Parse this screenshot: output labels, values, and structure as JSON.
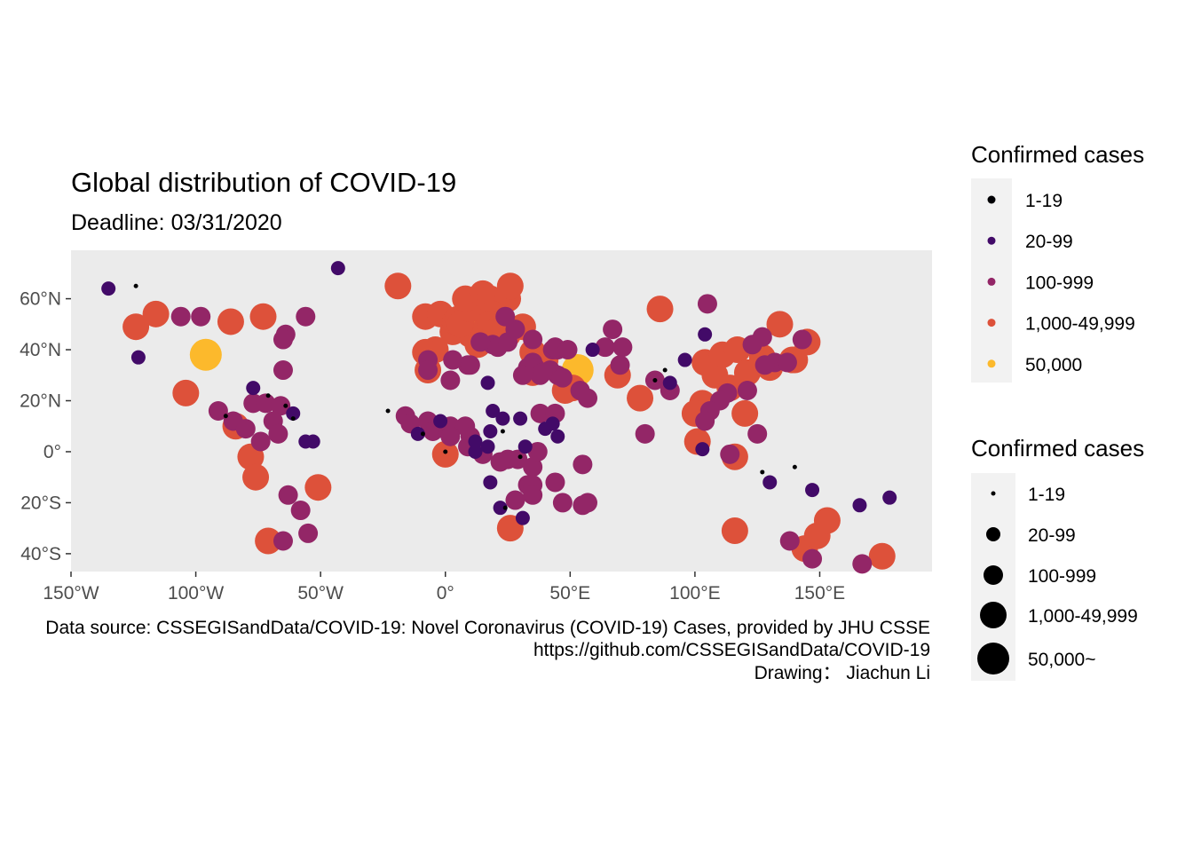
{
  "chart_data": {
    "type": "scatter",
    "title": "Global distribution of COVID-19",
    "subtitle": "Deadline: 03/31/2020",
    "caption": [
      "Data source: CSSEGISandData/COVID-19: Novel Coronavirus (COVID-19) Cases, provided by JHU CSSE",
      "https://github.com/CSSEGISandData/COVID-19",
      "Drawing： Jiachun Li"
    ],
    "xlim": [
      -150,
      195
    ],
    "ylim": [
      -47,
      79
    ],
    "x_ticks": [
      -150,
      -100,
      -50,
      0,
      50,
      100,
      150
    ],
    "x_tick_labels": [
      "150°W",
      "100°W",
      "50°W",
      "0°",
      "50°E",
      "100°E",
      "150°E"
    ],
    "y_ticks": [
      60,
      40,
      20,
      0,
      -20,
      -40
    ],
    "y_tick_labels": [
      "60°N",
      "40°N",
      "20°N",
      "0°",
      "20°S",
      "40°S"
    ],
    "grid": false,
    "panel_background": "#ebebeb",
    "legend_position": "right",
    "color_legend": {
      "title": "Confirmed cases",
      "items": [
        {
          "label": "1-19",
          "color": "#000004"
        },
        {
          "label": "20-99",
          "color": "#420a68"
        },
        {
          "label": "100-999",
          "color": "#932667"
        },
        {
          "label": "1,000-49,999",
          "color": "#dd513a"
        },
        {
          "label": "50,000",
          "color": "#fcb92c"
        }
      ]
    },
    "size_legend": {
      "title": "Confirmed cases",
      "items": [
        {
          "label": "1-19",
          "level": 1
        },
        {
          "label": "20-99",
          "level": 2
        },
        {
          "label": "100-999",
          "level": 3
        },
        {
          "label": "1,000-49,999",
          "level": 4
        },
        {
          "label": "50,000~",
          "level": 5
        }
      ]
    },
    "points": [
      [
        -135,
        64,
        2
      ],
      [
        -124,
        65,
        1
      ],
      [
        -123,
        37,
        2
      ],
      [
        -124,
        49,
        4
      ],
      [
        -116,
        54,
        4
      ],
      [
        -106,
        53,
        3
      ],
      [
        -98,
        53,
        3
      ],
      [
        -96,
        38,
        5
      ],
      [
        -86,
        51,
        4
      ],
      [
        -73,
        53,
        4
      ],
      [
        -64,
        46,
        3
      ],
      [
        -65,
        44,
        3
      ],
      [
        -56,
        53,
        3
      ],
      [
        -65,
        32,
        3
      ],
      [
        -104,
        23,
        4
      ],
      [
        -91,
        16,
        3
      ],
      [
        -88,
        14,
        1
      ],
      [
        -85,
        12,
        3
      ],
      [
        -84,
        10,
        4
      ],
      [
        -80,
        9,
        3
      ],
      [
        -77,
        19,
        3
      ],
      [
        -77,
        25,
        2
      ],
      [
        -72,
        19,
        3
      ],
      [
        -71,
        22,
        1
      ],
      [
        -66,
        18,
        3
      ],
      [
        -64,
        18,
        1
      ],
      [
        -61,
        15,
        2
      ],
      [
        -61,
        13,
        1
      ],
      [
        -69,
        12,
        3
      ],
      [
        -78,
        -2,
        4
      ],
      [
        -74,
        4,
        3
      ],
      [
        -76,
        -10,
        4
      ],
      [
        -67,
        7,
        3
      ],
      [
        -63,
        -17,
        3
      ],
      [
        -58,
        -23,
        3
      ],
      [
        -56,
        4,
        2
      ],
      [
        -53,
        4,
        2
      ],
      [
        -55,
        -32,
        3
      ],
      [
        -65,
        -35,
        3
      ],
      [
        -71,
        -35,
        4
      ],
      [
        -51,
        -14,
        4
      ],
      [
        -43,
        72,
        2
      ],
      [
        -19,
        65,
        4
      ],
      [
        -8,
        53,
        4
      ],
      [
        -2,
        54,
        4
      ],
      [
        3,
        47,
        4
      ],
      [
        -4,
        40,
        4
      ],
      [
        -8,
        39,
        4
      ],
      [
        -7,
        36,
        3
      ],
      [
        -7,
        32,
        3
      ],
      [
        -23,
        16,
        1
      ],
      [
        -16,
        14,
        3
      ],
      [
        -14,
        11,
        3
      ],
      [
        -11,
        7,
        2
      ],
      [
        -9,
        7,
        1
      ],
      [
        -7,
        12,
        3
      ],
      [
        -5,
        8,
        3
      ],
      [
        -2,
        12,
        2
      ],
      [
        1,
        8,
        3
      ],
      [
        2,
        10,
        3
      ],
      [
        8,
        10,
        3
      ],
      [
        10,
        6,
        3
      ],
      [
        12,
        4,
        2
      ],
      [
        2,
        6,
        3
      ],
      [
        9,
        2,
        3
      ],
      [
        12,
        0,
        2
      ],
      [
        0,
        0,
        1
      ],
      [
        0,
        -1,
        4
      ],
      [
        15,
        -1,
        3
      ],
      [
        17,
        2,
        2
      ],
      [
        18,
        8,
        2
      ],
      [
        19,
        16,
        2
      ],
      [
        23,
        13,
        2
      ],
      [
        23,
        8,
        1
      ],
      [
        30,
        13,
        2
      ],
      [
        32,
        2,
        2
      ],
      [
        30,
        -2,
        1
      ],
      [
        29,
        -3,
        3
      ],
      [
        25,
        -3,
        3
      ],
      [
        35,
        -6,
        3
      ],
      [
        37,
        0,
        3
      ],
      [
        40,
        9,
        2
      ],
      [
        38,
        15,
        3
      ],
      [
        43,
        11,
        2
      ],
      [
        45,
        6,
        2
      ],
      [
        18,
        -12,
        2
      ],
      [
        22,
        -4,
        3
      ],
      [
        22,
        -22,
        2
      ],
      [
        24,
        -22,
        1
      ],
      [
        26,
        -30,
        4
      ],
      [
        28,
        -19,
        3
      ],
      [
        31,
        -26,
        2
      ],
      [
        33,
        -13,
        3
      ],
      [
        35,
        -13,
        3
      ],
      [
        35,
        -17,
        3
      ],
      [
        47,
        -20,
        3
      ],
      [
        55,
        -21,
        3
      ],
      [
        57,
        -20,
        3
      ],
      [
        44,
        -12,
        3
      ],
      [
        55,
        -5,
        3
      ],
      [
        9,
        34,
        3
      ],
      [
        2,
        28,
        3
      ],
      [
        -7,
        32,
        4
      ],
      [
        3,
        36,
        3
      ],
      [
        10,
        34,
        3
      ],
      [
        17,
        27,
        2
      ],
      [
        13,
        42,
        4
      ],
      [
        10,
        46,
        4
      ],
      [
        15,
        47,
        4
      ],
      [
        8,
        51,
        5
      ],
      [
        4,
        51,
        4
      ],
      [
        5,
        52,
        4
      ],
      [
        6,
        50,
        4
      ],
      [
        10,
        56,
        4
      ],
      [
        8,
        60,
        4
      ],
      [
        15,
        62,
        4
      ],
      [
        18,
        60,
        4
      ],
      [
        25,
        60,
        4
      ],
      [
        26,
        65,
        4
      ],
      [
        19,
        54,
        4
      ],
      [
        18,
        50,
        4
      ],
      [
        20,
        47,
        4
      ],
      [
        25,
        46,
        4
      ],
      [
        19,
        42,
        3
      ],
      [
        21,
        41,
        3
      ],
      [
        25,
        43,
        3
      ],
      [
        14,
        43,
        3
      ],
      [
        28,
        48,
        3
      ],
      [
        24,
        53,
        3
      ],
      [
        31,
        49,
        4
      ],
      [
        35,
        44,
        3
      ],
      [
        40,
        36,
        4
      ],
      [
        35,
        35,
        3
      ],
      [
        35,
        39,
        4
      ],
      [
        33,
        33,
        3
      ],
      [
        36,
        33,
        3
      ],
      [
        38,
        30,
        3
      ],
      [
        35,
        31,
        4
      ],
      [
        45,
        30,
        3
      ],
      [
        42,
        32,
        3
      ],
      [
        47,
        29,
        3
      ],
      [
        51,
        25,
        4
      ],
      [
        48,
        24,
        4
      ],
      [
        54,
        24,
        3
      ],
      [
        57,
        21,
        3
      ],
      [
        44,
        15,
        3
      ],
      [
        31,
        30,
        3
      ],
      [
        39,
        31,
        3
      ],
      [
        43,
        40,
        3
      ],
      [
        45,
        40,
        3
      ],
      [
        44,
        41,
        3
      ],
      [
        49,
        40,
        3
      ],
      [
        53,
        32,
        5
      ],
      [
        67,
        48,
        3
      ],
      [
        64,
        41,
        3
      ],
      [
        71,
        41,
        3
      ],
      [
        59,
        40,
        2
      ],
      [
        70,
        34,
        3
      ],
      [
        69,
        30,
        4
      ],
      [
        78,
        21,
        4
      ],
      [
        80,
        7,
        3
      ],
      [
        84,
        28,
        1
      ],
      [
        88,
        32,
        1
      ],
      [
        90,
        24,
        3
      ],
      [
        84,
        28,
        3
      ],
      [
        90,
        27,
        2
      ],
      [
        96,
        36,
        2
      ],
      [
        104,
        46,
        2
      ],
      [
        104,
        35,
        4
      ],
      [
        108,
        30,
        4
      ],
      [
        111,
        38,
        4
      ],
      [
        117,
        40,
        4
      ],
      [
        121,
        31,
        4
      ],
      [
        114,
        25,
        4
      ],
      [
        113,
        23,
        3
      ],
      [
        110,
        20,
        3
      ],
      [
        103,
        19,
        4
      ],
      [
        106,
        16,
        3
      ],
      [
        100,
        15,
        4
      ],
      [
        104,
        12,
        3
      ],
      [
        101,
        4,
        4
      ],
      [
        103,
        1,
        2
      ],
      [
        114,
        -1,
        3
      ],
      [
        116,
        -2,
        4
      ],
      [
        120,
        15,
        4
      ],
      [
        125,
        7,
        3
      ],
      [
        121,
        24,
        3
      ],
      [
        127,
        37,
        4
      ],
      [
        132,
        35,
        3
      ],
      [
        137,
        35,
        3
      ],
      [
        140,
        36,
        4
      ],
      [
        130,
        33,
        4
      ],
      [
        139,
        36,
        4
      ],
      [
        145,
        43,
        4
      ],
      [
        143,
        44,
        3
      ],
      [
        127,
        45,
        3
      ],
      [
        123,
        42,
        3
      ],
      [
        128,
        34,
        3
      ],
      [
        105,
        58,
        3
      ],
      [
        86,
        56,
        4
      ],
      [
        134,
        50,
        4
      ],
      [
        127,
        -8,
        1
      ],
      [
        140,
        -6,
        1
      ],
      [
        130,
        -12,
        2
      ],
      [
        147,
        -15,
        2
      ],
      [
        144,
        -38,
        4
      ],
      [
        149,
        -33,
        4
      ],
      [
        153,
        -27,
        4
      ],
      [
        116,
        -31,
        4
      ],
      [
        138,
        -35,
        3
      ],
      [
        147,
        -42,
        3
      ],
      [
        166,
        -21,
        2
      ],
      [
        178,
        -18,
        2
      ],
      [
        175,
        -41,
        4
      ],
      [
        167,
        -44,
        3
      ]
    ]
  }
}
